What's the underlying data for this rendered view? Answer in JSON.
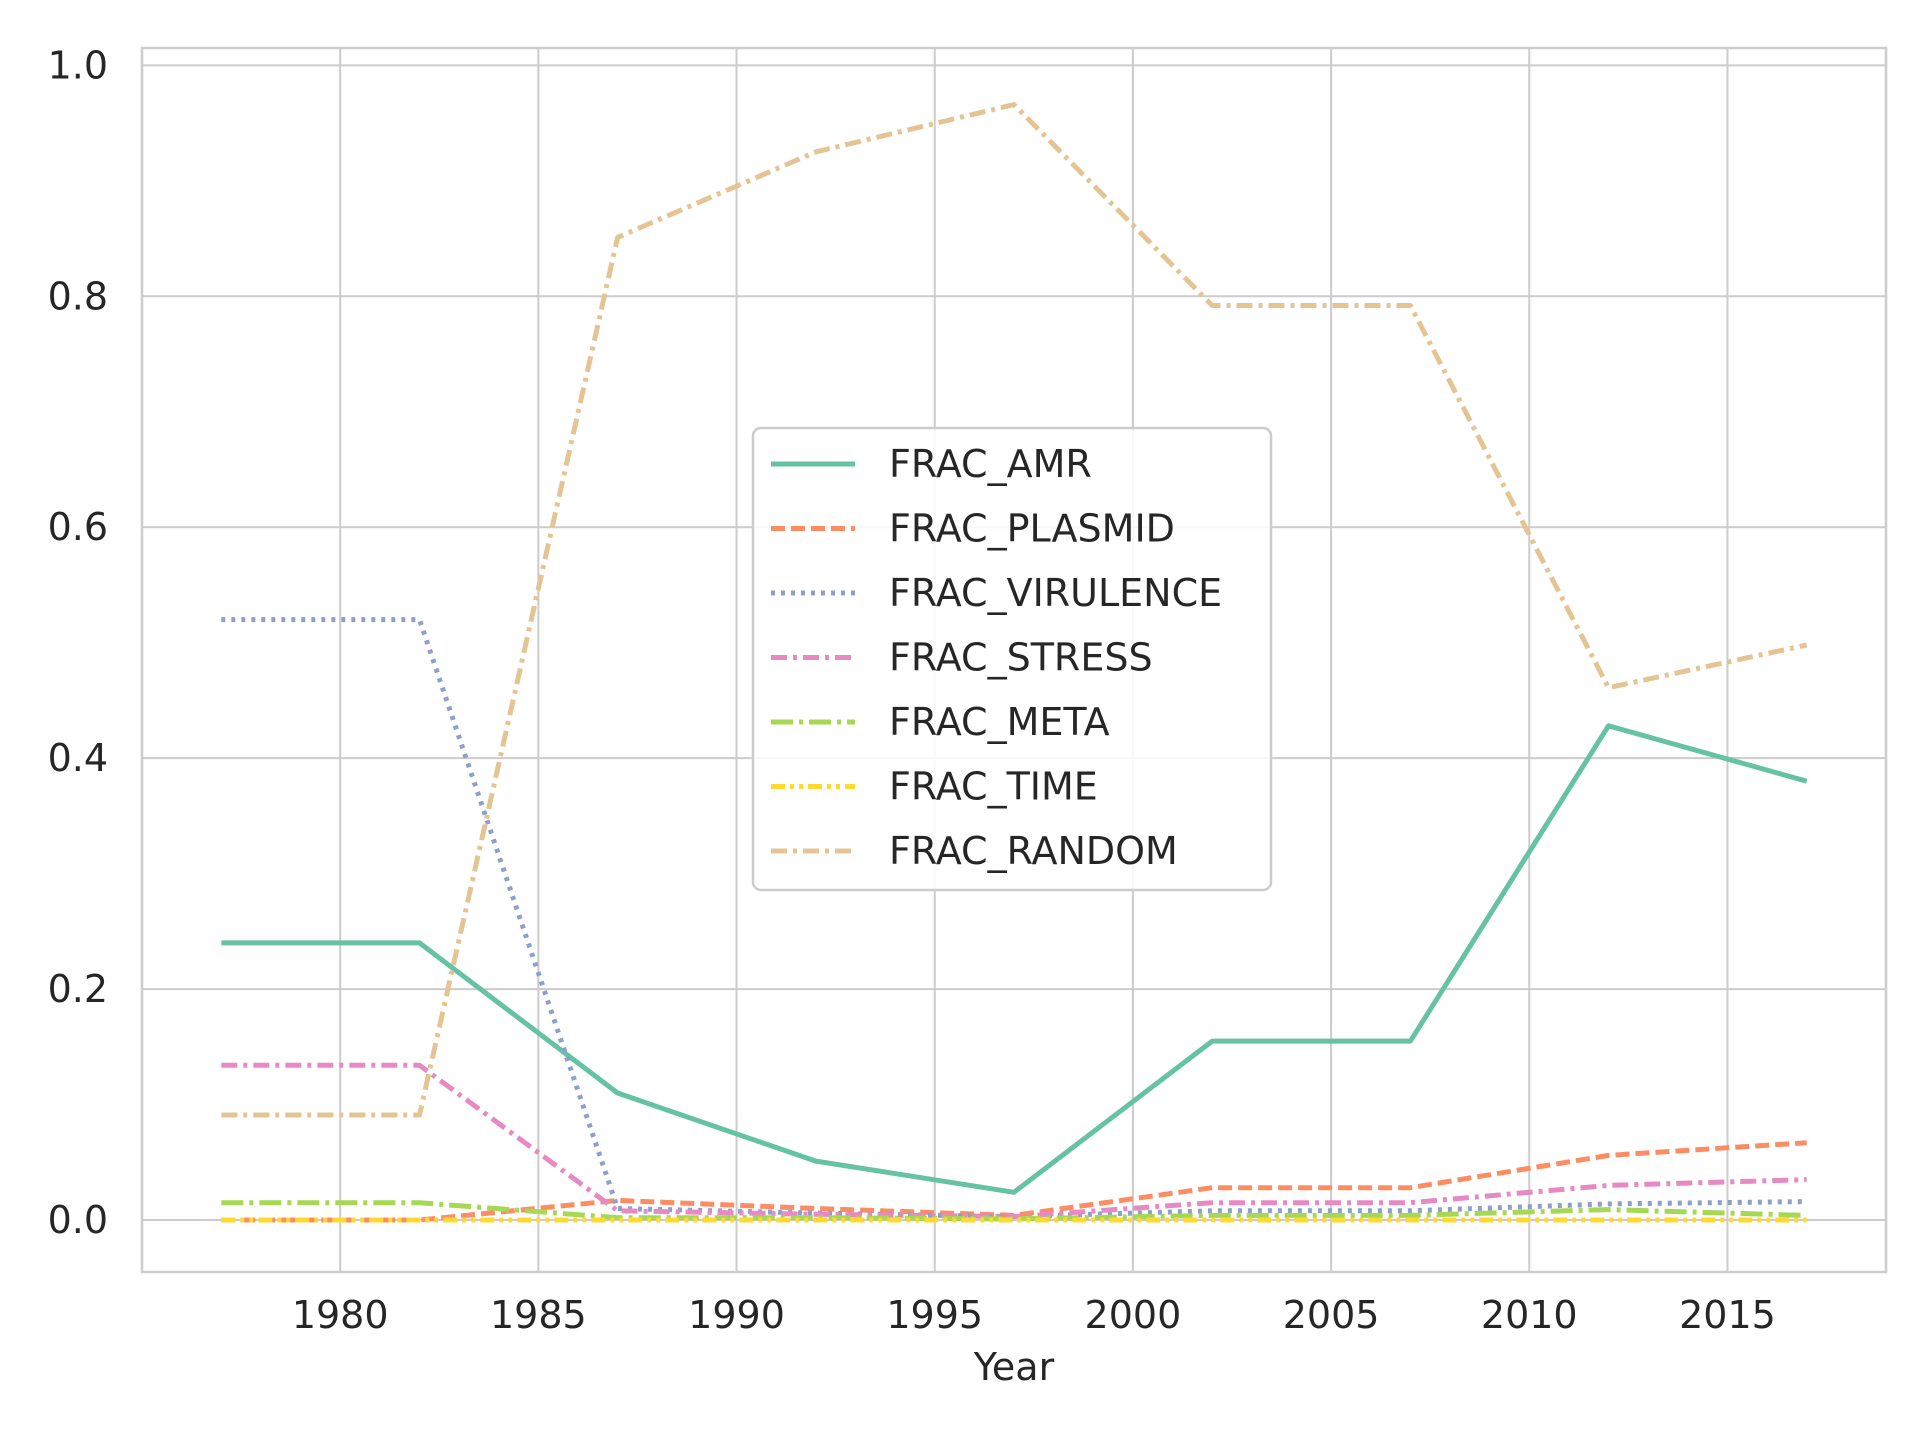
{
  "chart_data": {
    "type": "line",
    "title": "",
    "xlabel": "Year",
    "ylabel": "",
    "x": [
      1977,
      1982,
      1987,
      1992,
      1997,
      2002,
      2007,
      2012,
      2017
    ],
    "xlim": [
      1975,
      2019
    ],
    "ylim": [
      -0.045,
      1.015
    ],
    "xticks": [
      1980,
      1985,
      1990,
      1995,
      2000,
      2005,
      2010,
      2015
    ],
    "yticks": [
      0.0,
      0.2,
      0.4,
      0.6,
      0.8,
      1.0
    ],
    "ytick_labels": [
      "0.0",
      "0.2",
      "0.4",
      "0.6",
      "0.8",
      "1.0"
    ],
    "grid": true,
    "legend_position": "center",
    "series": [
      {
        "name": "FRAC_AMR",
        "color": "#66c2a5",
        "style": "solid",
        "values": [
          0.24,
          0.24,
          0.11,
          0.051,
          0.024,
          0.155,
          0.155,
          0.428,
          0.38
        ]
      },
      {
        "name": "FRAC_PLASMID",
        "color": "#fc8d62",
        "style": "dashed",
        "values": [
          0.0,
          0.0,
          0.017,
          0.01,
          0.004,
          0.028,
          0.028,
          0.056,
          0.067
        ]
      },
      {
        "name": "FRAC_VIRULENCE",
        "color": "#8da0cb",
        "style": "dotted",
        "values": [
          0.52,
          0.52,
          0.01,
          0.006,
          0.003,
          0.008,
          0.008,
          0.014,
          0.016
        ]
      },
      {
        "name": "FRAC_STRESS",
        "color": "#e78ac3",
        "style": "dashdot",
        "values": [
          0.134,
          0.134,
          0.008,
          0.005,
          0.003,
          0.015,
          0.015,
          0.03,
          0.035
        ]
      },
      {
        "name": "FRAC_META",
        "color": "#a6d854",
        "style": "longdashdot",
        "values": [
          0.015,
          0.015,
          0.002,
          0.002,
          0.001,
          0.004,
          0.004,
          0.009,
          0.004
        ]
      },
      {
        "name": "FRAC_TIME",
        "color": "#ffd92f",
        "style": "dashdotdot",
        "values": [
          0.0,
          0.0,
          0.0,
          0.0,
          0.0,
          0.0,
          0.0,
          0.0,
          0.0
        ]
      },
      {
        "name": "FRAC_RANDOM",
        "color": "#e5c494",
        "style": "dashdot",
        "values": [
          0.091,
          0.091,
          0.851,
          0.925,
          0.966,
          0.792,
          0.792,
          0.461,
          0.498
        ]
      }
    ]
  }
}
